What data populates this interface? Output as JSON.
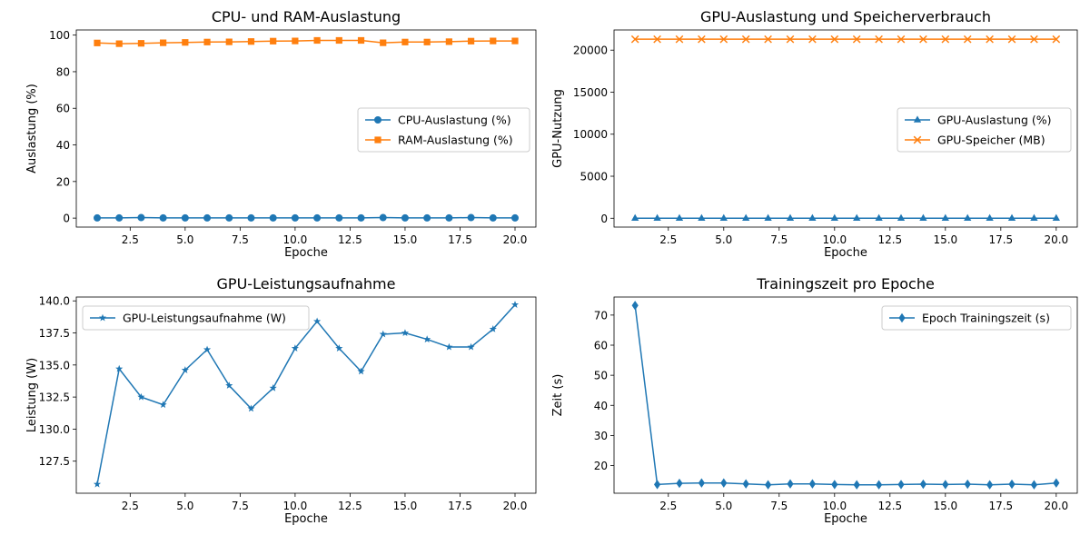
{
  "colors": {
    "blue": "#1f77b4",
    "orange": "#ff7f0e"
  },
  "chart_data": [
    {
      "type": "line",
      "title": "CPU- und RAM-Auslastung",
      "xlabel": "Epoche",
      "ylabel": "Auslastung (%)",
      "x": [
        1,
        2,
        3,
        4,
        5,
        6,
        7,
        8,
        9,
        10,
        11,
        12,
        13,
        14,
        15,
        16,
        17,
        18,
        19,
        20
      ],
      "xlim": [
        0.05,
        20.95
      ],
      "ylim": [
        -4.9,
        102.8
      ],
      "xticks": [
        2.5,
        5.0,
        7.5,
        10.0,
        12.5,
        15.0,
        17.5,
        20.0
      ],
      "xtick_labels": [
        "2.5",
        "5.0",
        "7.5",
        "10.0",
        "12.5",
        "15.0",
        "17.5",
        "20.0"
      ],
      "yticks": [
        0,
        20,
        40,
        60,
        80,
        100
      ],
      "ytick_labels": [
        "0",
        "20",
        "40",
        "60",
        "80",
        "100"
      ],
      "legend_position": "right",
      "series": [
        {
          "name": "CPU-Auslastung (%)",
          "color": "#1f77b4",
          "marker": "circle",
          "values": [
            0.1,
            0.1,
            0.3,
            0.1,
            0.1,
            0.1,
            0.1,
            0.1,
            0.1,
            0.1,
            0.1,
            0.1,
            0.1,
            0.3,
            0.1,
            0.1,
            0.1,
            0.3,
            0.1,
            0.1
          ]
        },
        {
          "name": "RAM-Auslastung (%)",
          "color": "#ff7f0e",
          "marker": "square",
          "values": [
            95.7,
            95.3,
            95.5,
            95.8,
            96.0,
            96.2,
            96.3,
            96.5,
            96.7,
            96.8,
            97.1,
            97.1,
            97.1,
            95.8,
            96.2,
            96.2,
            96.4,
            96.7,
            96.8,
            96.8
          ]
        }
      ]
    },
    {
      "type": "line",
      "title": "GPU-Auslastung und Speicherverbrauch",
      "xlabel": "Epoche",
      "ylabel": "GPU-Nutzung",
      "x": [
        1,
        2,
        3,
        4,
        5,
        6,
        7,
        8,
        9,
        10,
        11,
        12,
        13,
        14,
        15,
        16,
        17,
        18,
        19,
        20
      ],
      "xlim": [
        0.05,
        20.95
      ],
      "ylim": [
        -1050,
        22400
      ],
      "xticks": [
        2.5,
        5.0,
        7.5,
        10.0,
        12.5,
        15.0,
        17.5,
        20.0
      ],
      "xtick_labels": [
        "2.5",
        "5.0",
        "7.5",
        "10.0",
        "12.5",
        "15.0",
        "17.5",
        "20.0"
      ],
      "yticks": [
        0,
        5000,
        10000,
        15000,
        20000
      ],
      "ytick_labels": [
        "0",
        "5000",
        "10000",
        "15000",
        "20000"
      ],
      "legend_position": "right",
      "series": [
        {
          "name": "GPU-Auslastung (%)",
          "color": "#1f77b4",
          "marker": "triangle",
          "values": [
            0,
            0,
            0,
            0,
            0,
            0,
            0,
            0,
            0,
            0,
            0,
            0,
            0,
            0,
            0,
            0,
            0,
            0,
            0,
            0
          ]
        },
        {
          "name": "GPU-Speicher (MB)",
          "color": "#ff7f0e",
          "marker": "x",
          "values": [
            21300,
            21300,
            21300,
            21300,
            21300,
            21300,
            21300,
            21300,
            21300,
            21300,
            21300,
            21300,
            21300,
            21300,
            21300,
            21300,
            21300,
            21300,
            21300,
            21300
          ]
        }
      ]
    },
    {
      "type": "line",
      "title": "GPU-Leistungsaufnahme",
      "xlabel": "Epoche",
      "ylabel": "Leistung (W)",
      "x": [
        1,
        2,
        3,
        4,
        5,
        6,
        7,
        8,
        9,
        10,
        11,
        12,
        13,
        14,
        15,
        16,
        17,
        18,
        19,
        20
      ],
      "xlim": [
        0.05,
        20.95
      ],
      "ylim": [
        125.0,
        140.3
      ],
      "xticks": [
        2.5,
        5.0,
        7.5,
        10.0,
        12.5,
        15.0,
        17.5,
        20.0
      ],
      "xtick_labels": [
        "2.5",
        "5.0",
        "7.5",
        "10.0",
        "12.5",
        "15.0",
        "17.5",
        "20.0"
      ],
      "yticks": [
        127.5,
        130.0,
        132.5,
        135.0,
        137.5,
        140.0
      ],
      "ytick_labels": [
        "127.5",
        "130.0",
        "132.5",
        "135.0",
        "137.5",
        "140.0"
      ],
      "legend_position": "upper left",
      "series": [
        {
          "name": "GPU-Leistungsaufnahme (W)",
          "color": "#1f77b4",
          "marker": "star",
          "values": [
            125.7,
            134.7,
            132.5,
            131.9,
            134.6,
            136.2,
            133.4,
            131.6,
            133.2,
            136.3,
            138.4,
            136.3,
            134.5,
            137.4,
            137.5,
            137.0,
            136.4,
            136.4,
            137.8,
            139.7
          ]
        }
      ]
    },
    {
      "type": "line",
      "title": "Trainingszeit pro Epoche",
      "xlabel": "Epoche",
      "ylabel": "Zeit (s)",
      "x": [
        1,
        2,
        3,
        4,
        5,
        6,
        7,
        8,
        9,
        10,
        11,
        12,
        13,
        14,
        15,
        16,
        17,
        18,
        19,
        20
      ],
      "xlim": [
        0.05,
        20.95
      ],
      "ylim": [
        10.8,
        76.0
      ],
      "xticks": [
        2.5,
        5.0,
        7.5,
        10.0,
        12.5,
        15.0,
        17.5,
        20.0
      ],
      "xtick_labels": [
        "2.5",
        "5.0",
        "7.5",
        "10.0",
        "12.5",
        "15.0",
        "17.5",
        "20.0"
      ],
      "yticks": [
        20,
        30,
        40,
        50,
        60,
        70
      ],
      "ytick_labels": [
        "20",
        "30",
        "40",
        "50",
        "60",
        "70"
      ],
      "legend_position": "upper right",
      "series": [
        {
          "name": "Epoch Trainingszeit (s)",
          "color": "#1f77b4",
          "marker": "diamond",
          "values": [
            73.2,
            13.7,
            14.1,
            14.2,
            14.2,
            13.9,
            13.6,
            13.9,
            13.9,
            13.7,
            13.6,
            13.6,
            13.7,
            13.8,
            13.7,
            13.8,
            13.6,
            13.8,
            13.6,
            14.2
          ]
        }
      ]
    }
  ]
}
